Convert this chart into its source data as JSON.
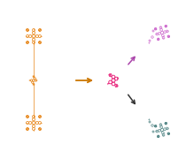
{
  "bg_color": "#ffffff",
  "orange_color": "#E8871A",
  "pink_color": "#E8247A",
  "teal_color": "#4A8080",
  "purple_color": "#CC66CC",
  "arrow_orange": "#CC7700",
  "arrow_black": "#333333",
  "arrow_purple": "#AA44AA",
  "figsize": [
    2.1,
    1.89
  ],
  "dpi": 100
}
